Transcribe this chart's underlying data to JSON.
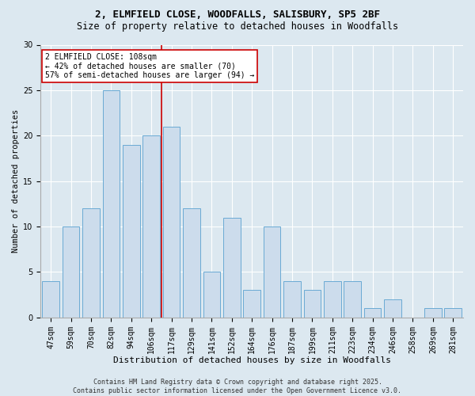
{
  "title1": "2, ELMFIELD CLOSE, WOODFALLS, SALISBURY, SP5 2BF",
  "title2": "Size of property relative to detached houses in Woodfalls",
  "xlabel": "Distribution of detached houses by size in Woodfalls",
  "ylabel": "Number of detached properties",
  "categories": [
    "47sqm",
    "59sqm",
    "70sqm",
    "82sqm",
    "94sqm",
    "106sqm",
    "117sqm",
    "129sqm",
    "141sqm",
    "152sqm",
    "164sqm",
    "176sqm",
    "187sqm",
    "199sqm",
    "211sqm",
    "223sqm",
    "234sqm",
    "246sqm",
    "258sqm",
    "269sqm",
    "281sqm"
  ],
  "values": [
    4,
    10,
    12,
    25,
    19,
    20,
    21,
    12,
    5,
    11,
    3,
    10,
    4,
    3,
    4,
    4,
    1,
    2,
    0,
    1,
    1
  ],
  "bar_color": "#ccdcec",
  "bar_edge_color": "#6aaad4",
  "highlight_index": 5,
  "highlight_line_color": "#cc0000",
  "annotation_text": "2 ELMFIELD CLOSE: 108sqm\n← 42% of detached houses are smaller (70)\n57% of semi-detached houses are larger (94) →",
  "annotation_box_color": "#ffffff",
  "annotation_box_edge": "#cc0000",
  "footer_text": "Contains HM Land Registry data © Crown copyright and database right 2025.\nContains public sector information licensed under the Open Government Licence v3.0.",
  "ylim": [
    0,
    30
  ],
  "yticks": [
    0,
    5,
    10,
    15,
    20,
    25,
    30
  ],
  "bg_color": "#dce8f0",
  "plot_bg_color": "#dce8f0",
  "title1_fontsize": 9,
  "title2_fontsize": 8.5,
  "xlabel_fontsize": 8,
  "ylabel_fontsize": 7.5,
  "tick_fontsize": 7,
  "footer_fontsize": 6,
  "annotation_fontsize": 7
}
